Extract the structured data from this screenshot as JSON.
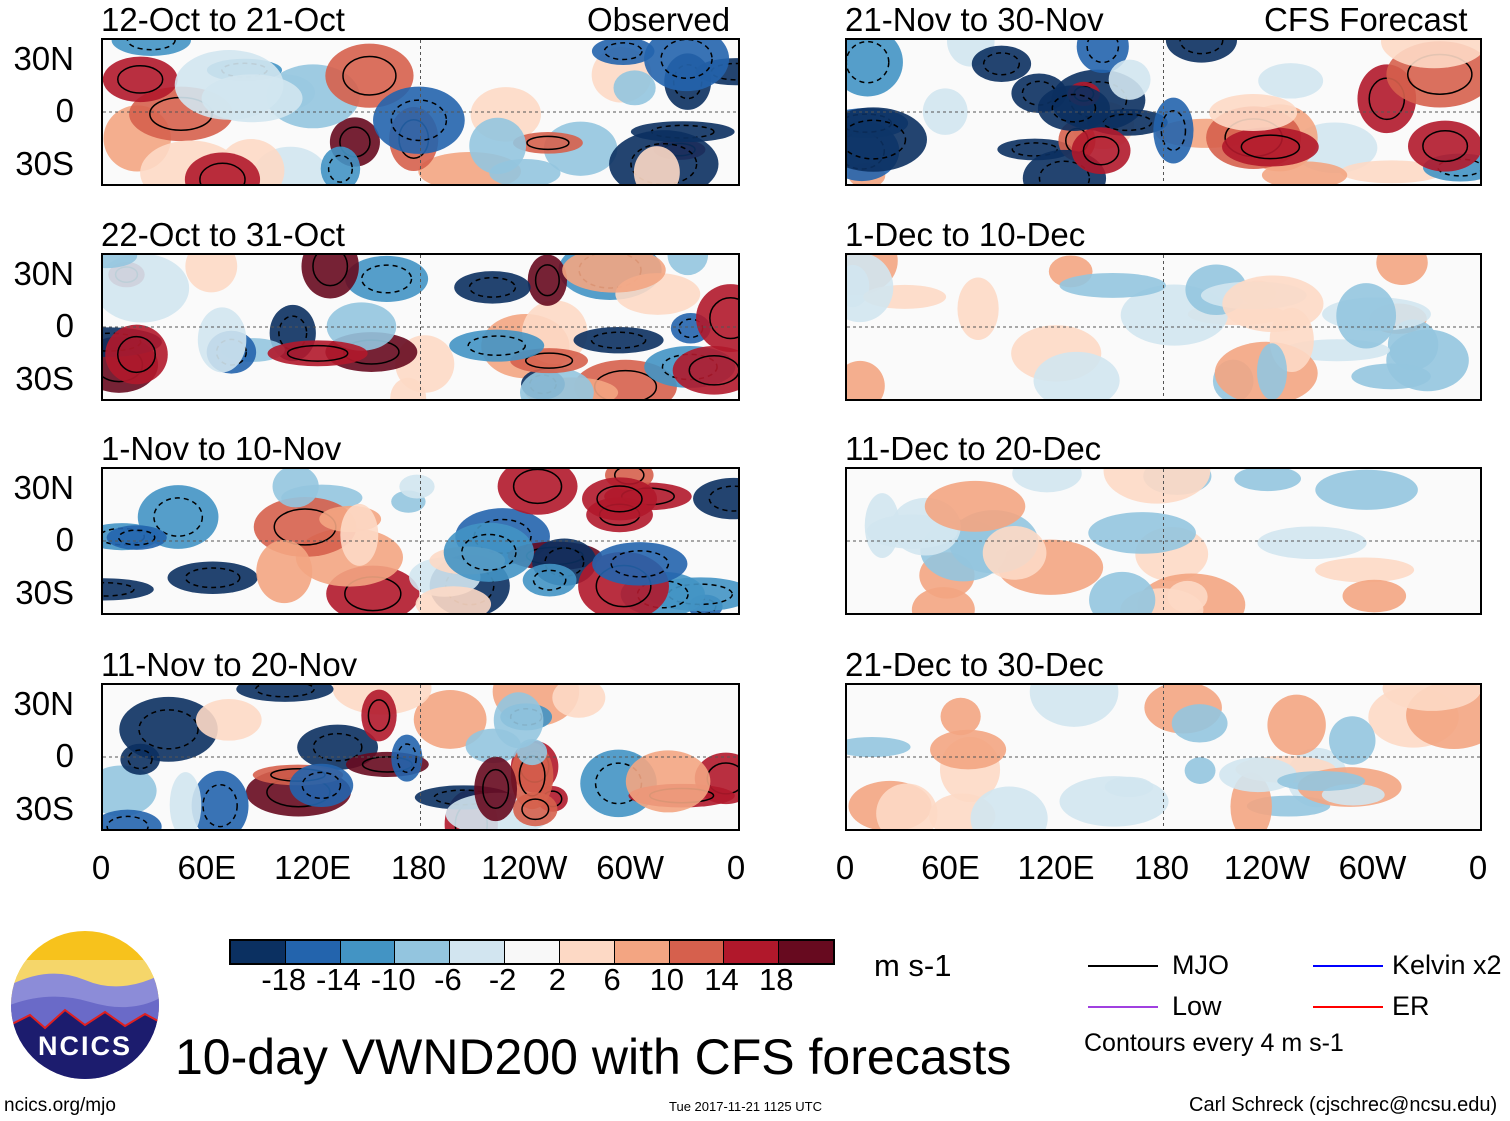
{
  "chart_data": {
    "type": "heatmap",
    "title": "10-day VWND200 with CFS forecasts",
    "units": "m s-1",
    "contour_note": "Contours every 4 m s-1",
    "column_headers": [
      "Observed",
      "CFS Forecast"
    ],
    "panels": [
      {
        "label": "12-Oct to 21-Oct",
        "column": "Observed"
      },
      {
        "label": "22-Oct to 31-Oct",
        "column": "Observed"
      },
      {
        "label": "1-Nov to 10-Nov",
        "column": "Observed"
      },
      {
        "label": "11-Nov to 20-Nov",
        "column": "Observed"
      },
      {
        "label": "21-Nov to 30-Nov",
        "column": "CFS Forecast"
      },
      {
        "label": "1-Dec to 10-Dec",
        "column": "CFS Forecast"
      },
      {
        "label": "11-Dec to 20-Dec",
        "column": "CFS Forecast"
      },
      {
        "label": "21-Dec to 30-Dec",
        "column": "CFS Forecast"
      }
    ],
    "y_ticks": [
      "30N",
      "0",
      "30S"
    ],
    "x_ticks": [
      "0",
      "60E",
      "120E",
      "180",
      "120W",
      "60W",
      "0"
    ],
    "colorbar": {
      "labels": [
        "-18",
        "-14",
        "-10",
        "-6",
        "-2",
        "2",
        "6",
        "10",
        "14",
        "18"
      ],
      "colors": [
        "#0b3061",
        "#2364ad",
        "#4394c4",
        "#93c5df",
        "#d2e5f0",
        "#f8f8f8",
        "#fdd9c5",
        "#f3a582",
        "#d6604d",
        "#b1182b",
        "#670a1f"
      ]
    },
    "legend": [
      {
        "label": "MJO",
        "color": "#000000"
      },
      {
        "label": "Kelvin x2",
        "color": "#0000ff"
      },
      {
        "label": "Low",
        "color": "#a040e0"
      },
      {
        "label": "ER",
        "color": "#ff0000"
      }
    ]
  },
  "footer": {
    "site": "ncics.org/mjo",
    "timestamp": "Tue 2017-11-21 1125 UTC",
    "author": "Carl Schreck (cjschrec@ncsu.edu)",
    "logo_text": "NCICS"
  }
}
